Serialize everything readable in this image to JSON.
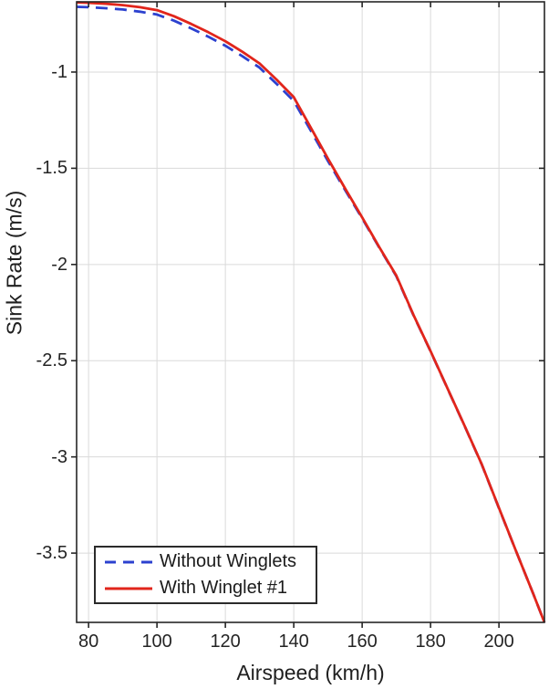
{
  "figure": {
    "background": "#ffffff",
    "axis_color": "#262626",
    "grid_color": "#dadada",
    "tick_text_color": "#242424"
  },
  "chart_data": {
    "type": "line",
    "title": "",
    "xlabel": "Airspeed (km/h)",
    "ylabel": "Sink Rate (m/s)",
    "xlim": [
      76.5,
      213.3
    ],
    "ylim": [
      -3.86,
      -0.635
    ],
    "x_ticks": [
      80,
      100,
      120,
      140,
      160,
      180,
      200
    ],
    "y_ticks": [
      -1,
      -1.5,
      -2,
      -2.5,
      -3,
      -3.5
    ],
    "grid": true,
    "box": true,
    "legend_position": "bottom-left",
    "series": [
      {
        "name": "Without Winglets",
        "color": "#2c41cf",
        "style": "dashed",
        "line_width": 2.8,
        "x": [
          76.5,
          80,
          85,
          90,
          95,
          100,
          105,
          110,
          115,
          120,
          125,
          130,
          135,
          140,
          145,
          150,
          155,
          160,
          165,
          170,
          175,
          180,
          185,
          190,
          195,
          200,
          205,
          210,
          213.3
        ],
        "y": [
          -0.661,
          -0.663,
          -0.668,
          -0.675,
          -0.686,
          -0.701,
          -0.733,
          -0.773,
          -0.816,
          -0.863,
          -0.918,
          -0.977,
          -1.062,
          -1.15,
          -1.305,
          -1.462,
          -1.613,
          -1.76,
          -1.912,
          -2.061,
          -2.264,
          -2.451,
          -2.647,
          -2.841,
          -3.041,
          -3.266,
          -3.49,
          -3.71,
          -3.86
        ]
      },
      {
        "name": "With Winglet #1",
        "color": "#e1251b",
        "style": "solid",
        "line_width": 2.8,
        "x": [
          76.5,
          80,
          85,
          90,
          95,
          100,
          105,
          110,
          115,
          120,
          125,
          130,
          135,
          140,
          145,
          150,
          155,
          160,
          165,
          170,
          175,
          180,
          185,
          190,
          195,
          200,
          205,
          210,
          213.3
        ],
        "y": [
          -0.638,
          -0.64,
          -0.645,
          -0.652,
          -0.663,
          -0.678,
          -0.71,
          -0.75,
          -0.793,
          -0.84,
          -0.895,
          -0.955,
          -1.04,
          -1.13,
          -1.29,
          -1.45,
          -1.605,
          -1.755,
          -1.91,
          -2.058,
          -2.262,
          -2.45,
          -2.646,
          -2.84,
          -3.04,
          -3.265,
          -3.49,
          -3.71,
          -3.86
        ]
      }
    ]
  }
}
